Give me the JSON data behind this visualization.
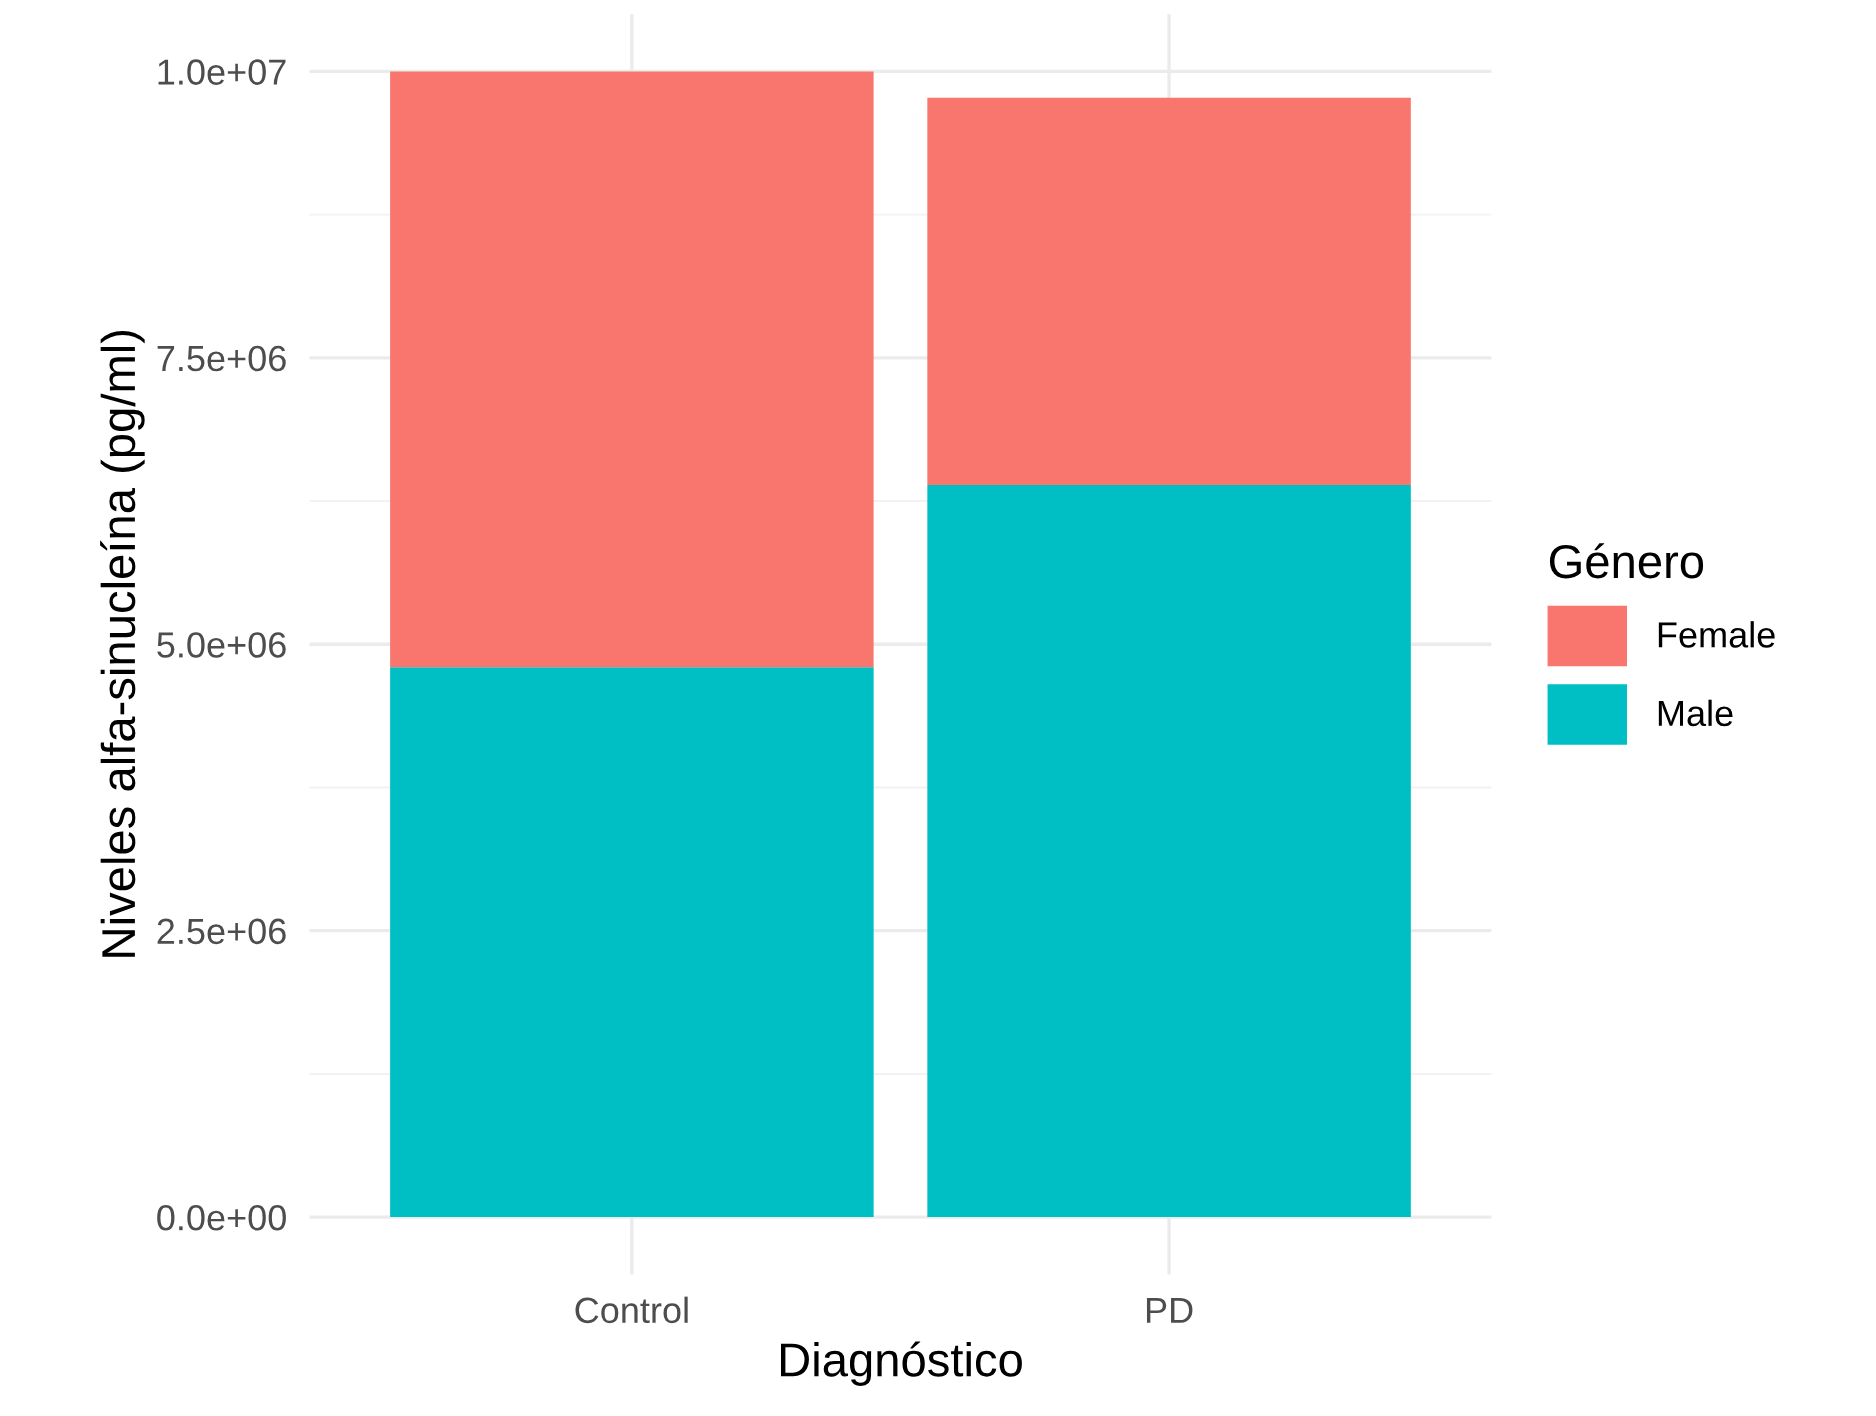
{
  "chart_data": {
    "type": "bar",
    "stacked": true,
    "xlabel": "Diagnóstico",
    "ylabel": "Niveles alfa-sinucleína (pg/ml)",
    "legend_title": "Género",
    "categories": [
      "Control",
      "PD"
    ],
    "series": [
      {
        "name": "Male",
        "color": "#00bfc4",
        "values": [
          4800000,
          6390000
        ]
      },
      {
        "name": "Female",
        "color": "#f8766d",
        "values": [
          5200000,
          3380000
        ]
      }
    ],
    "ylim": [
      -500000,
      10500000
    ],
    "yticks": [
      {
        "value": 0,
        "label": "0.0e+00"
      },
      {
        "value": 2500000,
        "label": "2.5e+06"
      },
      {
        "value": 5000000,
        "label": "5.0e+06"
      },
      {
        "value": 7500000,
        "label": "7.5e+06"
      },
      {
        "value": 10000000,
        "label": "1.0e+07"
      }
    ],
    "grid": true,
    "legend": "right"
  }
}
